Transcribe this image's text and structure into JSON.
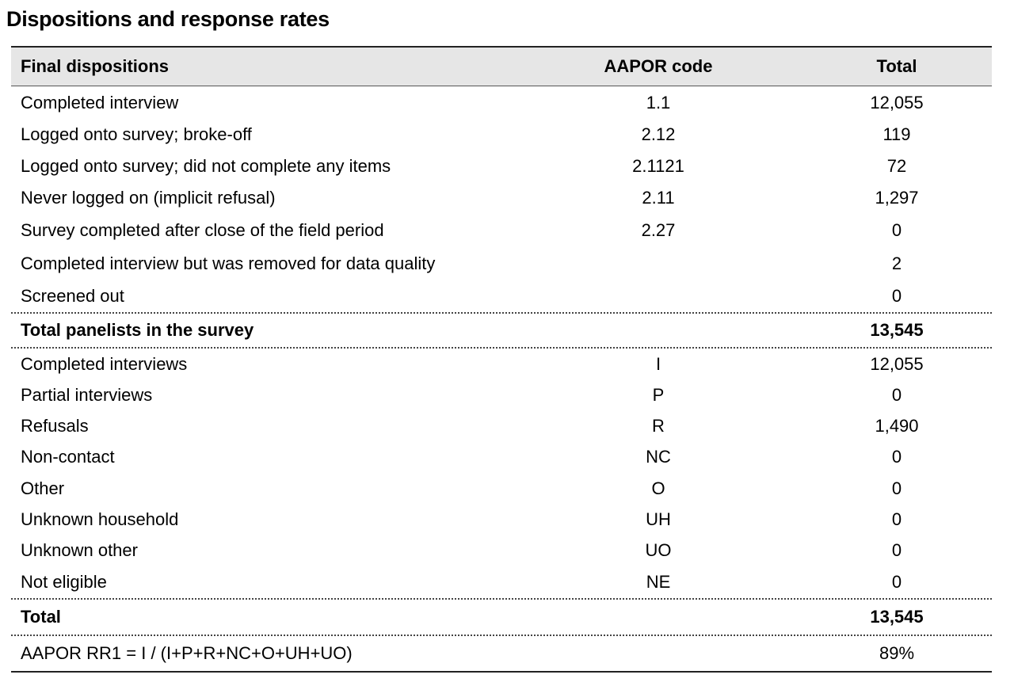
{
  "title": "Dispositions and response rates",
  "table": {
    "headers": {
      "disposition": "Final dispositions",
      "code": "AAPOR code",
      "total": "Total"
    },
    "section1": [
      {
        "label": "Completed interview",
        "code": "1.1",
        "total": "12,055"
      },
      {
        "label": "Logged onto survey; broke-off",
        "code": "2.12",
        "total": "119"
      },
      {
        "label": "Logged onto survey; did not complete any items",
        "code": "2.1121",
        "total": "72"
      },
      {
        "label": "Never logged on (implicit refusal)",
        "code": "2.11",
        "total": "1,297"
      },
      {
        "label": "Survey completed after close of the field period",
        "code": "2.27",
        "total": "0"
      },
      {
        "label": "Completed interview but was removed for data quality",
        "code": "",
        "total": "2"
      },
      {
        "label": "Screened out",
        "code": "",
        "total": "0"
      }
    ],
    "subtotal": {
      "label": "Total panelists in the survey",
      "code": "",
      "total": "13,545"
    },
    "section2": [
      {
        "label": "Completed interviews",
        "code": "I",
        "total": "12,055"
      },
      {
        "label": "Partial interviews",
        "code": "P",
        "total": "0"
      },
      {
        "label": "Refusals",
        "code": "R",
        "total": "1,490"
      },
      {
        "label": "Non-contact",
        "code": "NC",
        "total": "0"
      },
      {
        "label": "Other",
        "code": "O",
        "total": "0"
      },
      {
        "label": "Unknown household",
        "code": "UH",
        "total": "0"
      },
      {
        "label": "Unknown other",
        "code": "UO",
        "total": "0"
      },
      {
        "label": "Not eligible",
        "code": "NE",
        "total": "0"
      }
    ],
    "grand_total": {
      "label": "Total",
      "code": "",
      "total": "13,545"
    },
    "response_rate": {
      "label": "AAPOR RR1 = I / (I+P+R+NC+O+UH+UO)",
      "code": "",
      "total": "89%"
    }
  }
}
